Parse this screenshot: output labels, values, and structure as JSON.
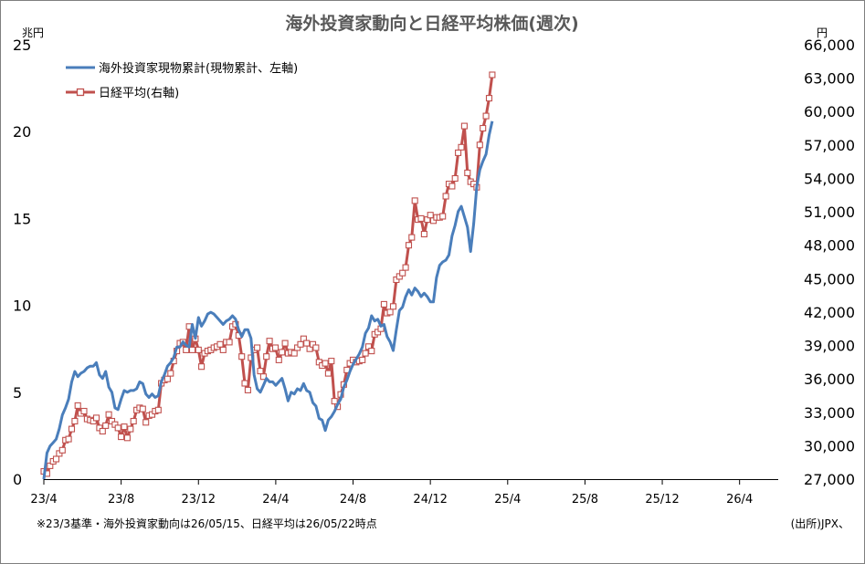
{
  "chart_data": {
    "type": "line",
    "title": "海外投資家動向と日経平均株価(週次)",
    "left_unit": "兆円",
    "right_unit": "円",
    "left_axis": {
      "min": 0,
      "max": 25,
      "ticks": [
        0,
        5,
        10,
        15,
        20,
        25
      ],
      "labels": [
        "0",
        "5",
        "10",
        "15",
        "20",
        "25"
      ]
    },
    "right_axis": {
      "min": 27000,
      "max": 66000,
      "ticks": [
        27000,
        30000,
        33000,
        36000,
        39000,
        42000,
        45000,
        48000,
        51000,
        54000,
        57000,
        60000,
        63000,
        66000
      ],
      "labels": [
        "27,000",
        "30,000",
        "33,000",
        "36,000",
        "39,000",
        "42,000",
        "45,000",
        "48,000",
        "51,000",
        "54,000",
        "57,000",
        "60,000",
        "63,000",
        "66,000"
      ]
    },
    "x_axis": {
      "min": 0,
      "max": 38,
      "ticks": [
        0,
        4,
        8,
        12,
        16,
        20,
        24,
        28,
        32,
        36
      ],
      "labels": [
        "23/4",
        "23/8",
        "23/12",
        "24/4",
        "24/8",
        "24/12",
        "25/4",
        "25/8",
        "25/12",
        "26/4"
      ]
    },
    "grid": false,
    "legend_position": "top-left",
    "series": [
      {
        "name": "海外投資家現物累計(現物累計、左軸)",
        "axis": "left",
        "color": "#4a7ebb",
        "marker": "none",
        "points": [
          [
            0.0,
            0.0
          ],
          [
            0.16,
            1.5
          ],
          [
            0.32,
            1.9
          ],
          [
            0.48,
            2.1
          ],
          [
            0.64,
            2.3
          ],
          [
            0.8,
            2.9
          ],
          [
            0.96,
            3.7
          ],
          [
            1.12,
            4.1
          ],
          [
            1.28,
            4.6
          ],
          [
            1.44,
            5.6
          ],
          [
            1.6,
            6.2
          ],
          [
            1.76,
            5.9
          ],
          [
            1.92,
            6.1
          ],
          [
            2.08,
            6.2
          ],
          [
            2.24,
            6.4
          ],
          [
            2.4,
            6.5
          ],
          [
            2.56,
            6.5
          ],
          [
            2.72,
            6.7
          ],
          [
            2.88,
            6.0
          ],
          [
            3.04,
            5.8
          ],
          [
            3.2,
            6.2
          ],
          [
            3.36,
            5.3
          ],
          [
            3.52,
            5.0
          ],
          [
            3.68,
            4.1
          ],
          [
            3.84,
            4.0
          ],
          [
            4.0,
            4.6
          ],
          [
            4.16,
            5.1
          ],
          [
            4.32,
            5.0
          ],
          [
            4.48,
            5.1
          ],
          [
            4.64,
            5.1
          ],
          [
            4.8,
            5.2
          ],
          [
            4.96,
            5.6
          ],
          [
            5.12,
            5.5
          ],
          [
            5.28,
            4.9
          ],
          [
            5.44,
            4.7
          ],
          [
            5.6,
            4.9
          ],
          [
            5.76,
            4.7
          ],
          [
            5.92,
            4.8
          ],
          [
            6.08,
            5.6
          ],
          [
            6.24,
            6.0
          ],
          [
            6.4,
            6.5
          ],
          [
            6.56,
            6.7
          ],
          [
            6.72,
            7.0
          ],
          [
            6.88,
            7.6
          ],
          [
            7.04,
            7.6
          ],
          [
            7.2,
            7.9
          ],
          [
            7.36,
            7.7
          ],
          [
            7.52,
            7.6
          ],
          [
            7.68,
            8.9
          ],
          [
            7.84,
            8.1
          ],
          [
            8.0,
            9.3
          ],
          [
            8.16,
            8.8
          ],
          [
            8.32,
            9.1
          ],
          [
            8.48,
            9.5
          ],
          [
            8.64,
            9.6
          ],
          [
            8.8,
            9.5
          ],
          [
            8.96,
            9.3
          ],
          [
            9.12,
            9.1
          ],
          [
            9.28,
            8.9
          ],
          [
            9.44,
            9.1
          ],
          [
            9.6,
            9.2
          ],
          [
            9.76,
            9.4
          ],
          [
            9.92,
            9.2
          ],
          [
            10.08,
            8.6
          ],
          [
            10.24,
            8.2
          ],
          [
            10.4,
            8.6
          ],
          [
            10.56,
            8.6
          ],
          [
            10.72,
            8.1
          ],
          [
            10.88,
            6.0
          ],
          [
            11.04,
            5.2
          ],
          [
            11.2,
            5.0
          ],
          [
            11.36,
            5.4
          ],
          [
            11.52,
            5.8
          ],
          [
            11.68,
            5.6
          ],
          [
            11.84,
            5.6
          ],
          [
            12.0,
            5.4
          ],
          [
            12.16,
            5.6
          ],
          [
            12.32,
            5.8
          ],
          [
            12.48,
            5.2
          ],
          [
            12.64,
            4.5
          ],
          [
            12.8,
            5.0
          ],
          [
            12.96,
            4.9
          ],
          [
            13.12,
            5.2
          ],
          [
            13.28,
            5.1
          ],
          [
            13.44,
            5.5
          ],
          [
            13.6,
            5.1
          ],
          [
            13.76,
            5.0
          ],
          [
            13.92,
            4.4
          ],
          [
            14.08,
            4.2
          ],
          [
            14.24,
            3.5
          ],
          [
            14.4,
            3.4
          ],
          [
            14.56,
            2.8
          ],
          [
            14.72,
            3.4
          ],
          [
            14.88,
            3.6
          ],
          [
            15.04,
            3.9
          ],
          [
            15.2,
            4.3
          ],
          [
            15.36,
            4.6
          ],
          [
            15.52,
            5.3
          ],
          [
            15.68,
            5.7
          ],
          [
            15.84,
            6.2
          ],
          [
            16.0,
            6.6
          ],
          [
            16.16,
            6.9
          ],
          [
            16.32,
            7.2
          ],
          [
            16.48,
            7.6
          ],
          [
            16.64,
            8.4
          ],
          [
            16.8,
            8.7
          ],
          [
            16.96,
            9.4
          ],
          [
            17.12,
            9.1
          ],
          [
            17.28,
            9.2
          ],
          [
            17.44,
            8.8
          ],
          [
            17.6,
            8.9
          ],
          [
            17.76,
            8.2
          ],
          [
            17.92,
            7.9
          ],
          [
            18.08,
            7.4
          ],
          [
            18.24,
            8.6
          ],
          [
            18.4,
            9.7
          ],
          [
            18.56,
            9.9
          ],
          [
            18.72,
            10.5
          ],
          [
            18.88,
            10.9
          ],
          [
            19.04,
            10.6
          ],
          [
            19.2,
            11.0
          ],
          [
            19.36,
            10.8
          ],
          [
            19.52,
            10.5
          ],
          [
            19.68,
            10.7
          ],
          [
            19.84,
            10.5
          ],
          [
            20.0,
            10.2
          ],
          [
            20.16,
            10.2
          ],
          [
            20.32,
            11.6
          ],
          [
            20.48,
            12.3
          ],
          [
            20.64,
            12.5
          ],
          [
            20.8,
            12.6
          ],
          [
            20.96,
            12.9
          ],
          [
            21.12,
            14.0
          ],
          [
            21.28,
            14.6
          ],
          [
            21.44,
            15.4
          ],
          [
            21.6,
            15.7
          ],
          [
            21.76,
            15.1
          ],
          [
            21.92,
            14.5
          ],
          [
            22.08,
            13.1
          ],
          [
            22.24,
            14.7
          ],
          [
            22.4,
            16.8
          ],
          [
            22.56,
            17.8
          ],
          [
            22.72,
            18.3
          ],
          [
            22.88,
            18.7
          ],
          [
            23.04,
            19.8
          ],
          [
            23.2,
            20.6
          ]
        ]
      },
      {
        "name": "日経平均(右軸)",
        "axis": "right",
        "color": "#c0504d",
        "marker": "open-square",
        "points": [
          [
            0.0,
            27700
          ],
          [
            0.16,
            27500
          ],
          [
            0.32,
            28200
          ],
          [
            0.48,
            28600
          ],
          [
            0.64,
            28800
          ],
          [
            0.8,
            29300
          ],
          [
            0.96,
            29600
          ],
          [
            1.12,
            30500
          ],
          [
            1.28,
            30600
          ],
          [
            1.44,
            31500
          ],
          [
            1.6,
            32200
          ],
          [
            1.76,
            33600
          ],
          [
            1.92,
            32900
          ],
          [
            2.08,
            33100
          ],
          [
            2.24,
            32400
          ],
          [
            2.4,
            32300
          ],
          [
            2.56,
            32200
          ],
          [
            2.72,
            32500
          ],
          [
            2.88,
            31600
          ],
          [
            3.04,
            31300
          ],
          [
            3.2,
            31800
          ],
          [
            3.36,
            32800
          ],
          [
            3.52,
            32200
          ],
          [
            3.68,
            31900
          ],
          [
            3.84,
            31600
          ],
          [
            4.0,
            30800
          ],
          [
            4.16,
            31700
          ],
          [
            4.32,
            30700
          ],
          [
            4.48,
            31500
          ],
          [
            4.64,
            32200
          ],
          [
            4.8,
            33200
          ],
          [
            4.96,
            33400
          ],
          [
            5.12,
            33300
          ],
          [
            5.28,
            32100
          ],
          [
            5.44,
            32700
          ],
          [
            5.6,
            32800
          ],
          [
            5.76,
            33100
          ],
          [
            5.92,
            33200
          ],
          [
            6.08,
            35600
          ],
          [
            6.24,
            35900
          ],
          [
            6.4,
            36000
          ],
          [
            6.56,
            36500
          ],
          [
            6.72,
            37600
          ],
          [
            6.88,
            38500
          ],
          [
            7.04,
            39200
          ],
          [
            7.2,
            39300
          ],
          [
            7.36,
            38600
          ],
          [
            7.52,
            40700
          ],
          [
            7.68,
            38600
          ],
          [
            7.84,
            39600
          ],
          [
            8.0,
            38600
          ],
          [
            8.16,
            37100
          ],
          [
            8.32,
            38300
          ],
          [
            8.48,
            38500
          ],
          [
            8.64,
            38600
          ],
          [
            8.8,
            38800
          ],
          [
            8.96,
            38900
          ],
          [
            9.12,
            39100
          ],
          [
            9.28,
            38600
          ],
          [
            9.44,
            39300
          ],
          [
            9.6,
            39300
          ],
          [
            9.76,
            40700
          ],
          [
            9.92,
            40900
          ],
          [
            10.08,
            39900
          ],
          [
            10.24,
            38000
          ],
          [
            10.4,
            35600
          ],
          [
            10.56,
            35000
          ],
          [
            10.72,
            37900
          ],
          [
            10.88,
            38600
          ],
          [
            11.04,
            38800
          ],
          [
            11.2,
            36700
          ],
          [
            11.36,
            36200
          ],
          [
            11.52,
            38000
          ],
          [
            11.68,
            39400
          ],
          [
            11.84,
            38700
          ],
          [
            11.98,
            38800
          ],
          [
            12.16,
            37700
          ],
          [
            12.32,
            38400
          ],
          [
            12.48,
            39200
          ],
          [
            12.64,
            38300
          ],
          [
            12.8,
            38400
          ],
          [
            12.96,
            38300
          ],
          [
            13.12,
            38800
          ],
          [
            13.28,
            39100
          ],
          [
            13.44,
            39600
          ],
          [
            13.6,
            39200
          ],
          [
            13.76,
            38700
          ],
          [
            13.92,
            39100
          ],
          [
            14.08,
            38800
          ],
          [
            14.24,
            37500
          ],
          [
            14.4,
            37200
          ],
          [
            14.56,
            37400
          ],
          [
            14.72,
            36500
          ],
          [
            14.88,
            37600
          ],
          [
            15.04,
            34000
          ],
          [
            15.2,
            33500
          ],
          [
            15.36,
            34600
          ],
          [
            15.52,
            35500
          ],
          [
            15.68,
            36800
          ],
          [
            15.84,
            37400
          ],
          [
            16.0,
            37700
          ],
          [
            16.16,
            37500
          ],
          [
            16.32,
            37600
          ],
          [
            16.48,
            37700
          ],
          [
            16.64,
            38300
          ],
          [
            16.8,
            38900
          ],
          [
            16.96,
            38500
          ],
          [
            17.12,
            40000
          ],
          [
            17.28,
            40200
          ],
          [
            17.44,
            40500
          ],
          [
            17.6,
            42700
          ],
          [
            17.76,
            41900
          ],
          [
            17.92,
            42000
          ],
          [
            18.08,
            42500
          ],
          [
            18.24,
            44900
          ],
          [
            18.4,
            45200
          ],
          [
            18.56,
            45500
          ],
          [
            18.72,
            46000
          ],
          [
            18.88,
            48000
          ],
          [
            19.04,
            48700
          ],
          [
            19.2,
            52000
          ],
          [
            19.36,
            50300
          ],
          [
            19.52,
            50400
          ],
          [
            19.68,
            49000
          ],
          [
            19.84,
            50300
          ],
          [
            20.0,
            50700
          ],
          [
            20.16,
            50200
          ],
          [
            20.32,
            50500
          ],
          [
            20.48,
            50500
          ],
          [
            20.64,
            50600
          ],
          [
            20.8,
            52400
          ],
          [
            20.96,
            53500
          ],
          [
            21.12,
            53300
          ],
          [
            21.28,
            54000
          ],
          [
            21.44,
            56300
          ],
          [
            21.6,
            56800
          ],
          [
            21.76,
            58700
          ],
          [
            21.92,
            54500
          ],
          [
            22.08,
            53700
          ],
          [
            22.24,
            53500
          ],
          [
            22.4,
            53200
          ],
          [
            22.56,
            57000
          ],
          [
            22.72,
            58500
          ],
          [
            22.88,
            59600
          ],
          [
            23.04,
            61200
          ],
          [
            23.2,
            63300
          ]
        ]
      }
    ]
  },
  "footnote": "※23/3基準・海外投資家動向は26/05/15、日経平均は26/05/22時点",
  "source": "(出所)JPX、"
}
